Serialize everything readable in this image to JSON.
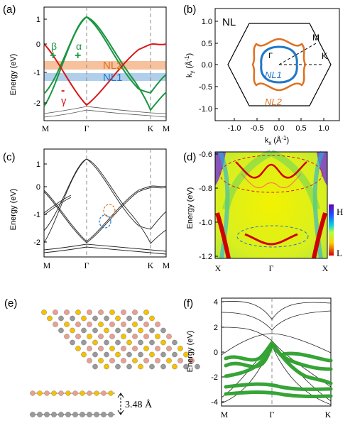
{
  "panels": {
    "a": {
      "label": "(a)",
      "ylabel": "Energy (eV)",
      "yticks": [
        "1",
        "0",
        "-1",
        "-2"
      ],
      "xticks": [
        "M",
        "Γ",
        "K",
        "M"
      ],
      "bands": {
        "beta": "β",
        "alpha": "α",
        "gamma": "γ",
        "plus": "+",
        "minus": "-"
      },
      "lines": {
        "nl2": "NL2",
        "nl1": "NL1"
      }
    },
    "b": {
      "label": "(b)",
      "title": "NL",
      "ylabel_main": "k",
      "ylabel_sub": "y",
      "ylabel_unit": " (Å",
      "ylabel_exp": "-1",
      "ylabel_close": ")",
      "xlabel_main": "k",
      "xlabel_sub": "x",
      "xlabel_unit": " (Å",
      "xlabel_exp": "-1",
      "xlabel_close": ")",
      "yticks": [
        "1.0",
        "0.5",
        "0.0",
        "-0.5",
        "-1.0"
      ],
      "xticks": [
        "-1.0",
        "-0.5",
        "0.0",
        "0.5",
        "1.0"
      ],
      "points": {
        "gamma": "Γ",
        "m": "M",
        "k": "K"
      },
      "loops": {
        "nl1": "NL1",
        "nl2": "NL2"
      }
    },
    "c": {
      "label": "(c)",
      "ylabel": "Energy (eV)",
      "yticks": [
        "1",
        "0",
        "-1",
        "-2"
      ],
      "xticks": [
        "M",
        "Γ",
        "K",
        "M"
      ]
    },
    "d": {
      "label": "(d)",
      "ylabel": "Energy (eV)",
      "yticks": [
        "-0.6",
        "-0.8",
        "-1.0",
        "-1.2"
      ],
      "xticks": [
        "X",
        "Γ",
        "X"
      ],
      "colorbar": {
        "high": "H",
        "low": "L"
      }
    },
    "e": {
      "label": "(e)",
      "distance": "3.48 Å"
    },
    "f": {
      "label": "(f)",
      "ylabel": "Energy (eV)",
      "yticks": [
        "4",
        "2",
        "0",
        "-2",
        "-4"
      ],
      "xticks": [
        "M",
        "Γ",
        "K"
      ]
    }
  },
  "colors": {
    "green": "#1a9641",
    "red": "#d7191c",
    "blue": "#1f78c8",
    "orange": "#e07020",
    "orange_band": "#f4b183",
    "blue_band": "#9dc3e6",
    "fat_band": "#2ca02c"
  }
}
